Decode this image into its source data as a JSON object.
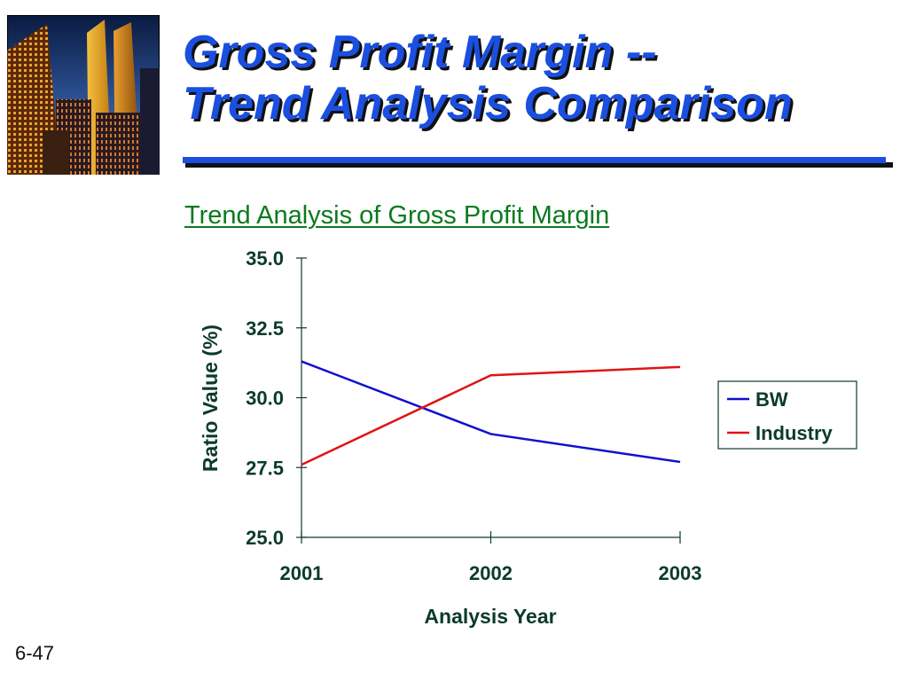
{
  "slide": {
    "title_line1": "Gross Profit Margin --",
    "title_line2": "Trend Analysis Comparison",
    "number": "6-47",
    "photo_icon": "skyscrapers-photo"
  },
  "colors": {
    "title_blue": "#1a4fe0",
    "chart_title_green": "#0a7a1e",
    "bw_series": "#1010d0",
    "industry_series": "#e01414",
    "axis": "#0b3b2a"
  },
  "chart_data": {
    "type": "line",
    "title": "Trend Analysis of Gross Profit Margin",
    "xlabel": "Analysis Year",
    "ylabel": "Ratio Value (%)",
    "x": [
      "2001",
      "2002",
      "2003"
    ],
    "ylim": [
      25.0,
      35.0
    ],
    "yticks": [
      "25.0",
      "27.5",
      "30.0",
      "32.5",
      "35.0"
    ],
    "grid": false,
    "legend_position": "right",
    "series": [
      {
        "name": "BW",
        "values": [
          31.3,
          28.7,
          27.7
        ],
        "color": "#1010d0"
      },
      {
        "name": "Industry",
        "values": [
          27.6,
          30.8,
          31.1
        ],
        "color": "#e01414"
      }
    ]
  }
}
